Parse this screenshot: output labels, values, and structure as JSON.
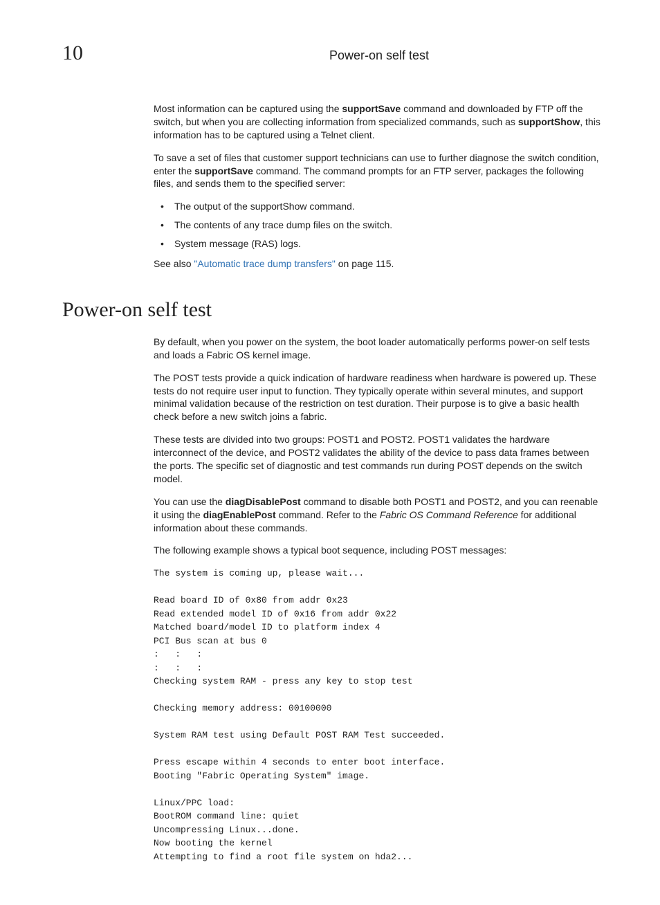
{
  "header": {
    "chapter_number": "10",
    "running_title": "Power-on self test"
  },
  "intro": {
    "p1_pre": "Most information can be captured using the ",
    "p1_b1": "supportSave",
    "p1_mid1": " command and downloaded by FTP off the switch, but when you are collecting information from specialized commands, such as ",
    "p1_b2": "supportShow",
    "p1_post": ", this information has to be captured using a Telnet client.",
    "p2_pre": "To save a set of files that customer support technicians can use to further diagnose the switch condition, enter the ",
    "p2_b1": "supportSave",
    "p2_post": " command. The command prompts for an FTP server, packages the following files, and sends them to the specified server:",
    "bullets": {
      "b1_pre": "The output of the ",
      "b1_bold": "supportShow",
      "b1_post": " command.",
      "b2": "The contents of any trace dump files on the switch.",
      "b3": "System message (RAS) logs."
    },
    "seealso_pre": "See also ",
    "seealso_link": "\"Automatic trace dump transfers\"",
    "seealso_post": " on page 115."
  },
  "section": {
    "heading": "Power-on self test",
    "p1": "By default, when you power on the system, the boot loader automatically performs power-on self tests and loads a Fabric OS kernel image.",
    "p2": "The POST tests provide a quick indication of hardware readiness when hardware is powered up. These tests do not require user input to function. They typically operate within several minutes, and support minimal validation because of the restriction on test duration. Their purpose is to give a basic health check before a new switch joins a fabric.",
    "p3": "These tests are divided into two groups: POST1 and POST2. POST1 validates the hardware interconnect of the device, and POST2 validates the ability of the device to pass data frames between the ports. The specific set of diagnostic and test commands run during POST depends on the switch model.",
    "p4_pre": "You can use the ",
    "p4_b1": "diagDisablePost",
    "p4_mid1": " command to disable both POST1 and POST2, and you can reenable it using the ",
    "p4_b2": "diagEnablePost",
    "p4_mid2": " command. Refer to the ",
    "p4_i1": "Fabric OS Command Reference",
    "p4_post": " for additional information about these commands.",
    "p5": "The following example shows a typical boot sequence, including POST messages:",
    "code": "The system is coming up, please wait...\n\nRead board ID of 0x80 from addr 0x23\nRead extended model ID of 0x16 from addr 0x22\nMatched board/model ID to platform index 4\nPCI Bus scan at bus 0\n:   :   :\n:   :   :\nChecking system RAM - press any key to stop test\n\nChecking memory address: 00100000\n\nSystem RAM test using Default POST RAM Test succeeded.\n\nPress escape within 4 seconds to enter boot interface.\nBooting \"Fabric Operating System\" image.\n\nLinux/PPC load:\nBootROM command line: quiet\nUncompressing Linux...done.\nNow booting the kernel\nAttempting to find a root file system on hda2..."
  }
}
